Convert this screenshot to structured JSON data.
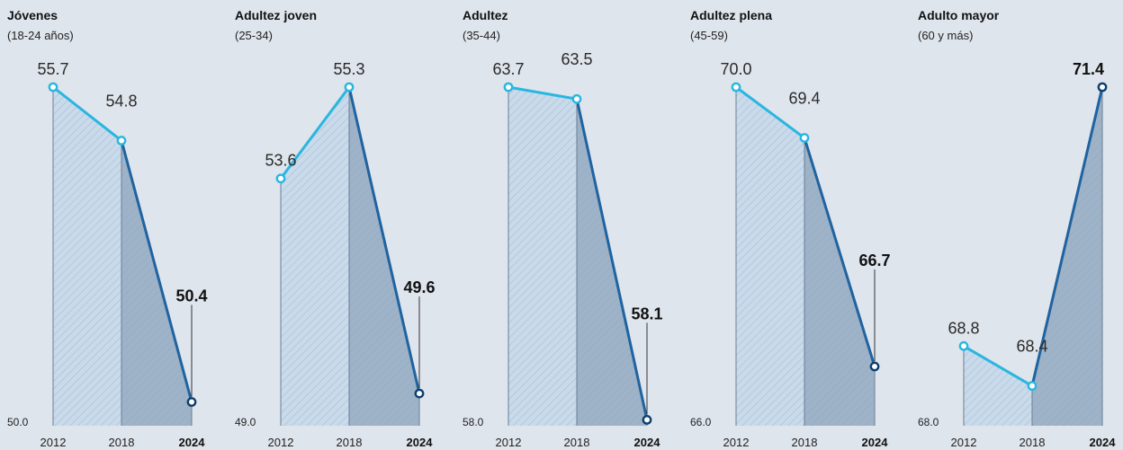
{
  "chart_data": [
    {
      "type": "line",
      "title": "Jóvenes",
      "subtitle": "(18-24 años)",
      "categories": [
        "2012",
        "2018",
        "2024"
      ],
      "values": [
        55.7,
        54.8,
        50.4
      ],
      "labels": [
        "55.7",
        "54.8",
        "50.4"
      ],
      "ylim": [
        50.0,
        55.7
      ],
      "baseline_label": "50.0",
      "highlight_last": true
    },
    {
      "type": "line",
      "title": "Adultez joven",
      "subtitle": "(25-34)",
      "categories": [
        "2012",
        "2018",
        "2024"
      ],
      "values": [
        53.6,
        55.3,
        49.6
      ],
      "labels": [
        "53.6",
        "55.3",
        "49.6"
      ],
      "ylim": [
        49.0,
        55.3
      ],
      "baseline_label": "49.0",
      "highlight_last": true
    },
    {
      "type": "line",
      "title": "Adultez",
      "subtitle": "(35-44)",
      "categories": [
        "2012",
        "2018",
        "2024"
      ],
      "values": [
        63.7,
        63.5,
        58.1
      ],
      "labels": [
        "63.7",
        "63.5",
        "58.1"
      ],
      "ylim": [
        58.0,
        63.7
      ],
      "baseline_label": "58.0",
      "highlight_last": true
    },
    {
      "type": "line",
      "title": "Adultez plena",
      "subtitle": "(45-59)",
      "categories": [
        "2012",
        "2018",
        "2024"
      ],
      "values": [
        70.0,
        69.4,
        66.7
      ],
      "labels": [
        "70.0",
        "69.4",
        "66.7"
      ],
      "ylim": [
        66.0,
        70.0
      ],
      "baseline_label": "66.0",
      "highlight_last": true
    },
    {
      "type": "line",
      "title": "Adulto mayor",
      "subtitle": "(60 y más)",
      "categories": [
        "2012",
        "2018",
        "2024"
      ],
      "values": [
        68.8,
        68.4,
        71.4
      ],
      "labels": [
        "68.8",
        "68.4",
        "71.4"
      ],
      "ylim": [
        68.0,
        71.4
      ],
      "baseline_label": "68.0",
      "highlight_last": true
    }
  ],
  "colors": {
    "background": "#dfe5ec",
    "line_early": "#29b6e0",
    "line_late": "#1f63a0",
    "fill_early": "#c9daea",
    "fill_late": "#9fb3c8",
    "hatch": "#7fa0bf"
  }
}
